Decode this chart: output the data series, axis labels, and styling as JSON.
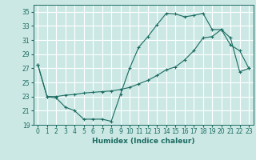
{
  "xlabel": "Humidex (Indice chaleur)",
  "xlim": [
    -0.5,
    23.5
  ],
  "ylim": [
    19,
    36
  ],
  "yticks": [
    19,
    21,
    23,
    25,
    27,
    29,
    31,
    33,
    35
  ],
  "xticks": [
    0,
    1,
    2,
    3,
    4,
    5,
    6,
    7,
    8,
    9,
    10,
    11,
    12,
    13,
    14,
    15,
    16,
    17,
    18,
    19,
    20,
    21,
    22,
    23
  ],
  "bg_color": "#cce8e5",
  "line_color": "#1a6b60",
  "grid_color": "#b0d8d4",
  "line1_x": [
    0,
    1,
    2,
    3,
    4,
    5,
    6,
    7,
    8,
    9,
    10,
    11,
    12,
    13,
    14,
    15,
    16,
    17,
    18,
    19,
    20,
    21,
    22,
    23
  ],
  "line1_y": [
    27.5,
    23.0,
    22.8,
    21.5,
    21.0,
    19.8,
    19.8,
    19.8,
    19.5,
    23.3,
    27.0,
    30.0,
    31.5,
    33.2,
    34.8,
    34.7,
    34.3,
    34.5,
    34.8,
    32.5,
    32.5,
    30.3,
    29.5,
    27.0
  ],
  "line2_x": [
    0,
    1,
    2,
    3,
    4,
    5,
    6,
    7,
    8,
    9,
    10,
    11,
    12,
    13,
    14,
    15,
    16,
    17,
    18,
    19,
    20,
    21,
    22,
    23
  ],
  "line2_y": [
    27.5,
    23.0,
    23.0,
    23.2,
    23.3,
    23.5,
    23.6,
    23.7,
    23.8,
    24.0,
    24.3,
    24.8,
    25.3,
    26.0,
    26.8,
    27.2,
    28.2,
    29.5,
    31.3,
    31.5,
    32.5,
    31.3,
    26.5,
    27.0
  ]
}
